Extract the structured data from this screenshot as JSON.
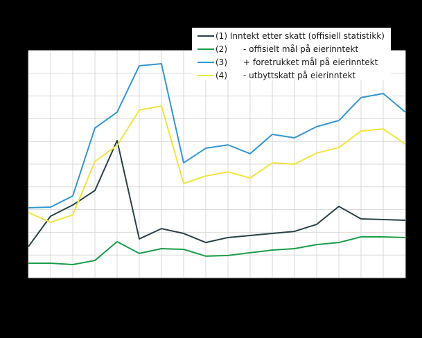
{
  "chart_data": {
    "type": "line",
    "title": "",
    "xlabel": "",
    "ylabel": "",
    "y_units_note": "values in gridline units (axis tick labels not visible in image)",
    "ylim": [
      0,
      10
    ],
    "y_gridlines": [
      0,
      1,
      2,
      3,
      4,
      5,
      6,
      7,
      8,
      9,
      10
    ],
    "x_count": 18,
    "x": [
      1,
      2,
      3,
      4,
      5,
      6,
      7,
      8,
      9,
      10,
      11,
      12,
      13,
      14,
      15,
      16,
      17,
      18
    ],
    "grid": true,
    "legend_position": "top-right",
    "series": [
      {
        "name": "(1) Inntekt etter skatt (offisiell statistikk)",
        "num": "(1)",
        "label": "Inntekt etter skatt (offisiell statistikk)",
        "color": "#274247",
        "values": [
          1.37,
          2.71,
          3.2,
          3.84,
          6.04,
          1.71,
          2.16,
          1.95,
          1.55,
          1.77,
          1.86,
          1.95,
          2.04,
          2.35,
          3.14,
          2.59,
          2.56,
          2.53
        ]
      },
      {
        "name": "(2) - offisielt mål på eierinntekt",
        "num": "(2)",
        "label": "- offisielt mål på eierinntekt",
        "color": "#1a9d49",
        "values": [
          0.64,
          0.64,
          0.58,
          0.76,
          1.59,
          1.07,
          1.28,
          1.25,
          0.95,
          0.98,
          1.1,
          1.22,
          1.28,
          1.46,
          1.55,
          1.8,
          1.8,
          1.77
        ]
      },
      {
        "name": "(3) + foretrukket mål på eierinntekt",
        "num": "(3)",
        "label": "+ foretrukket mål på eierinntekt",
        "color": "#3396d3",
        "values": [
          3.08,
          3.11,
          3.6,
          6.59,
          7.29,
          9.33,
          9.42,
          5.06,
          5.7,
          5.85,
          5.46,
          6.31,
          6.16,
          6.65,
          6.92,
          7.93,
          8.11,
          7.29
        ]
      },
      {
        "name": "(4) - utbyttskatt på eierinntekt",
        "num": "(4)",
        "label": "- utbyttskatt på eierinntekt",
        "color": "#f2e43d",
        "values": [
          2.87,
          2.44,
          2.77,
          5.12,
          5.82,
          7.38,
          7.56,
          4.15,
          4.48,
          4.66,
          4.39,
          5.06,
          5.0,
          5.49,
          5.73,
          6.46,
          6.55,
          5.88
        ]
      }
    ]
  },
  "legend": {
    "items": [
      {
        "num": "(1)",
        "label": " Inntekt etter skatt (offisiell statistikk)",
        "color": "#274247"
      },
      {
        "num": "(2)",
        "label": "- offisielt mål på eierinntekt",
        "color": "#1a9d49"
      },
      {
        "num": "(3)",
        "label": "+ foretrukket mål på eierinntekt",
        "color": "#3396d3"
      },
      {
        "num": "(4)",
        "label": "- utbyttskatt på eierinntekt",
        "color": "#f2e43d"
      }
    ]
  },
  "colors": {
    "background": "#000000",
    "plot_background": "#ffffff",
    "grid": "#d9d9d9"
  }
}
